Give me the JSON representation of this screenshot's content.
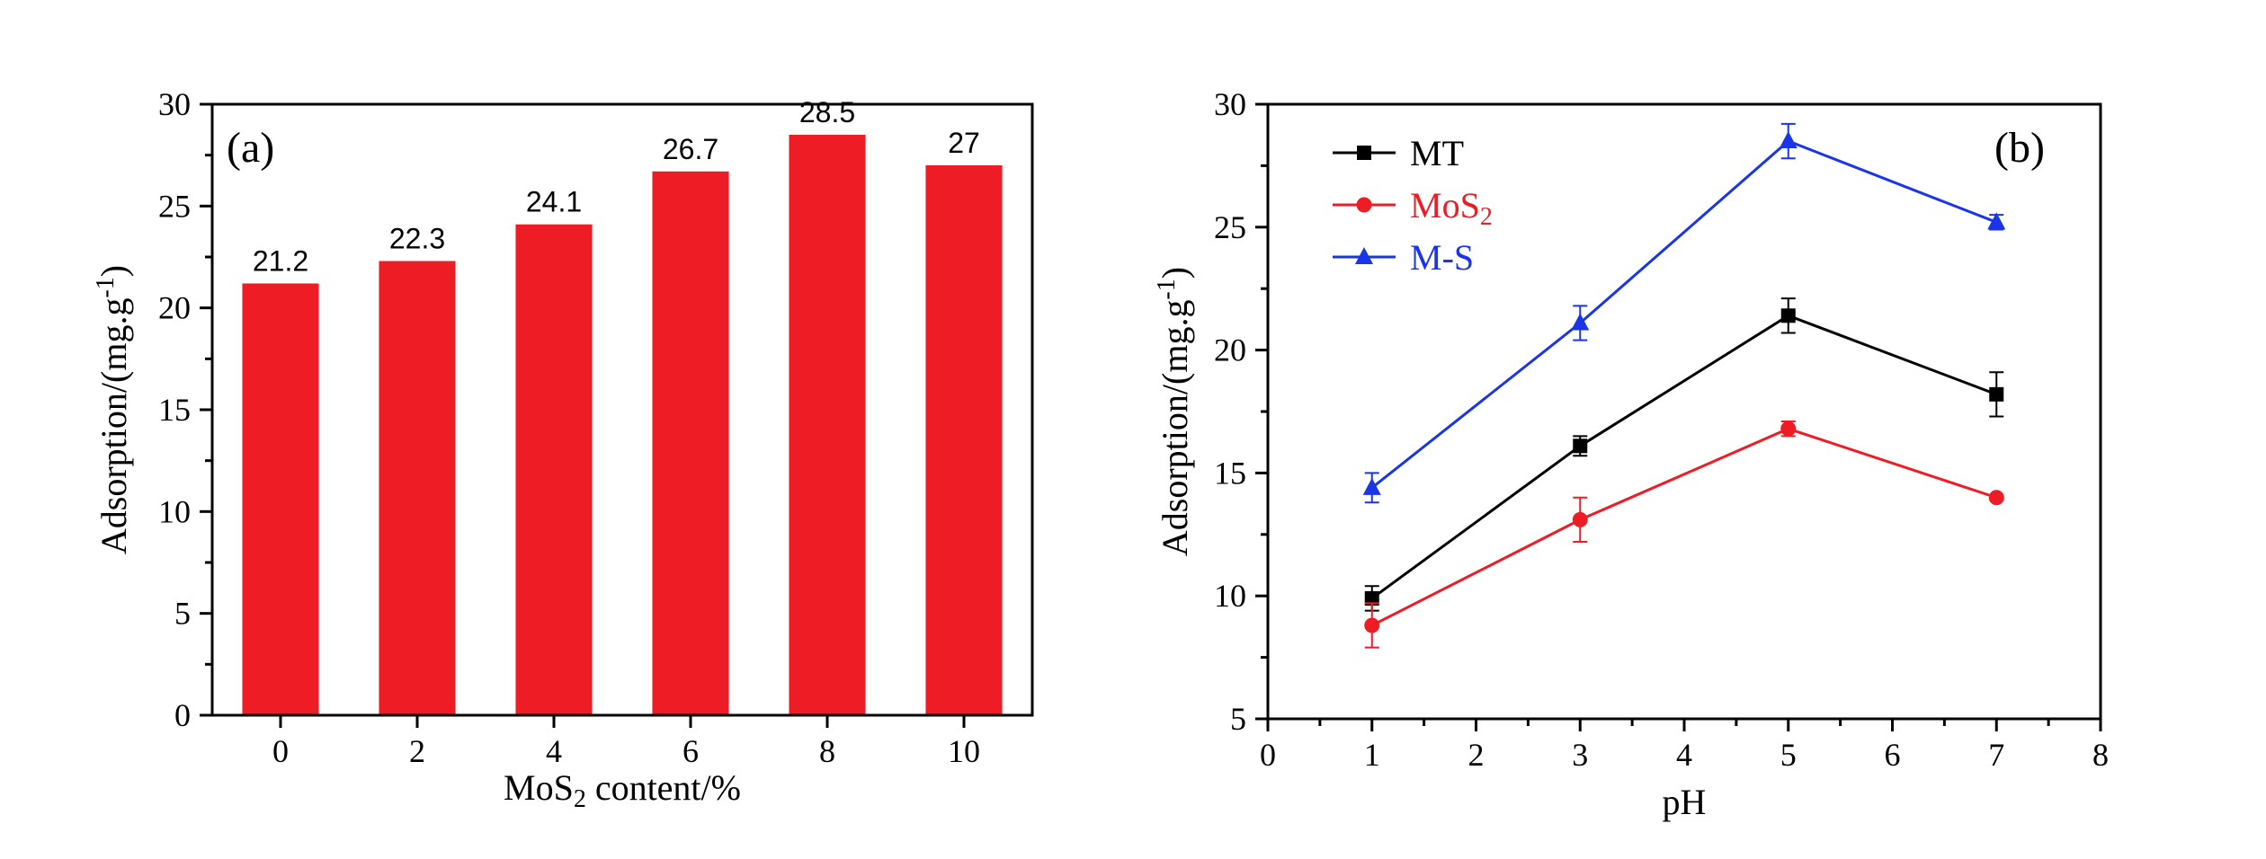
{
  "chart_data": [
    {
      "type": "bar",
      "panel_label": "(a)",
      "categories": [
        "0",
        "2",
        "4",
        "6",
        "8",
        "10"
      ],
      "values": [
        21.2,
        22.3,
        24.1,
        26.7,
        28.5,
        27
      ],
      "value_labels": [
        "21.2",
        "22.3",
        "24.1",
        "26.7",
        "28.5",
        "27"
      ],
      "xlabel": {
        "pre": "MoS",
        "sub": "2",
        "post": " content/%"
      },
      "ylabel": {
        "pre": "Adsorption/(mg.g",
        "sup": "-1",
        "post": ")"
      },
      "ylim": [
        0,
        30
      ],
      "yticks": [
        "0",
        "5",
        "10",
        "15",
        "20",
        "25",
        "30"
      ],
      "bar_color": "#ee1c25",
      "grid": false
    },
    {
      "type": "line",
      "panel_label": "(b)",
      "x": [
        1,
        3,
        5,
        7
      ],
      "series": [
        {
          "name": "MT",
          "legend": {
            "pre": "MT",
            "sub": ""
          },
          "color": "#000000",
          "marker": "square",
          "values": [
            9.9,
            16.1,
            21.4,
            18.2
          ],
          "errors": [
            0.5,
            0.4,
            0.7,
            0.9
          ]
        },
        {
          "name": "MoS2",
          "legend": {
            "pre": "MoS",
            "sub": "2"
          },
          "color": "#ee1c25",
          "marker": "circle",
          "values": [
            8.8,
            13.1,
            16.8,
            14.0
          ],
          "errors": [
            0.9,
            0.9,
            0.3,
            0.1
          ]
        },
        {
          "name": "M-S",
          "legend": {
            "pre": "M-S",
            "sub": ""
          },
          "color": "#1a35e8",
          "marker": "triangle",
          "values": [
            14.4,
            21.1,
            28.5,
            25.2
          ],
          "errors": [
            0.6,
            0.7,
            0.7,
            0.3
          ]
        }
      ],
      "xlabel": "pH",
      "ylabel": {
        "pre": "Adsorption/(mg.g",
        "sup": "-1",
        "post": ")"
      },
      "xlim": [
        0,
        8
      ],
      "ylim": [
        5,
        30
      ],
      "xticks": [
        "0",
        "1",
        "2",
        "3",
        "4",
        "5",
        "6",
        "7",
        "8"
      ],
      "yticks": [
        "5",
        "10",
        "15",
        "20",
        "25",
        "30"
      ],
      "legend_position": "top-left",
      "grid": false
    }
  ]
}
